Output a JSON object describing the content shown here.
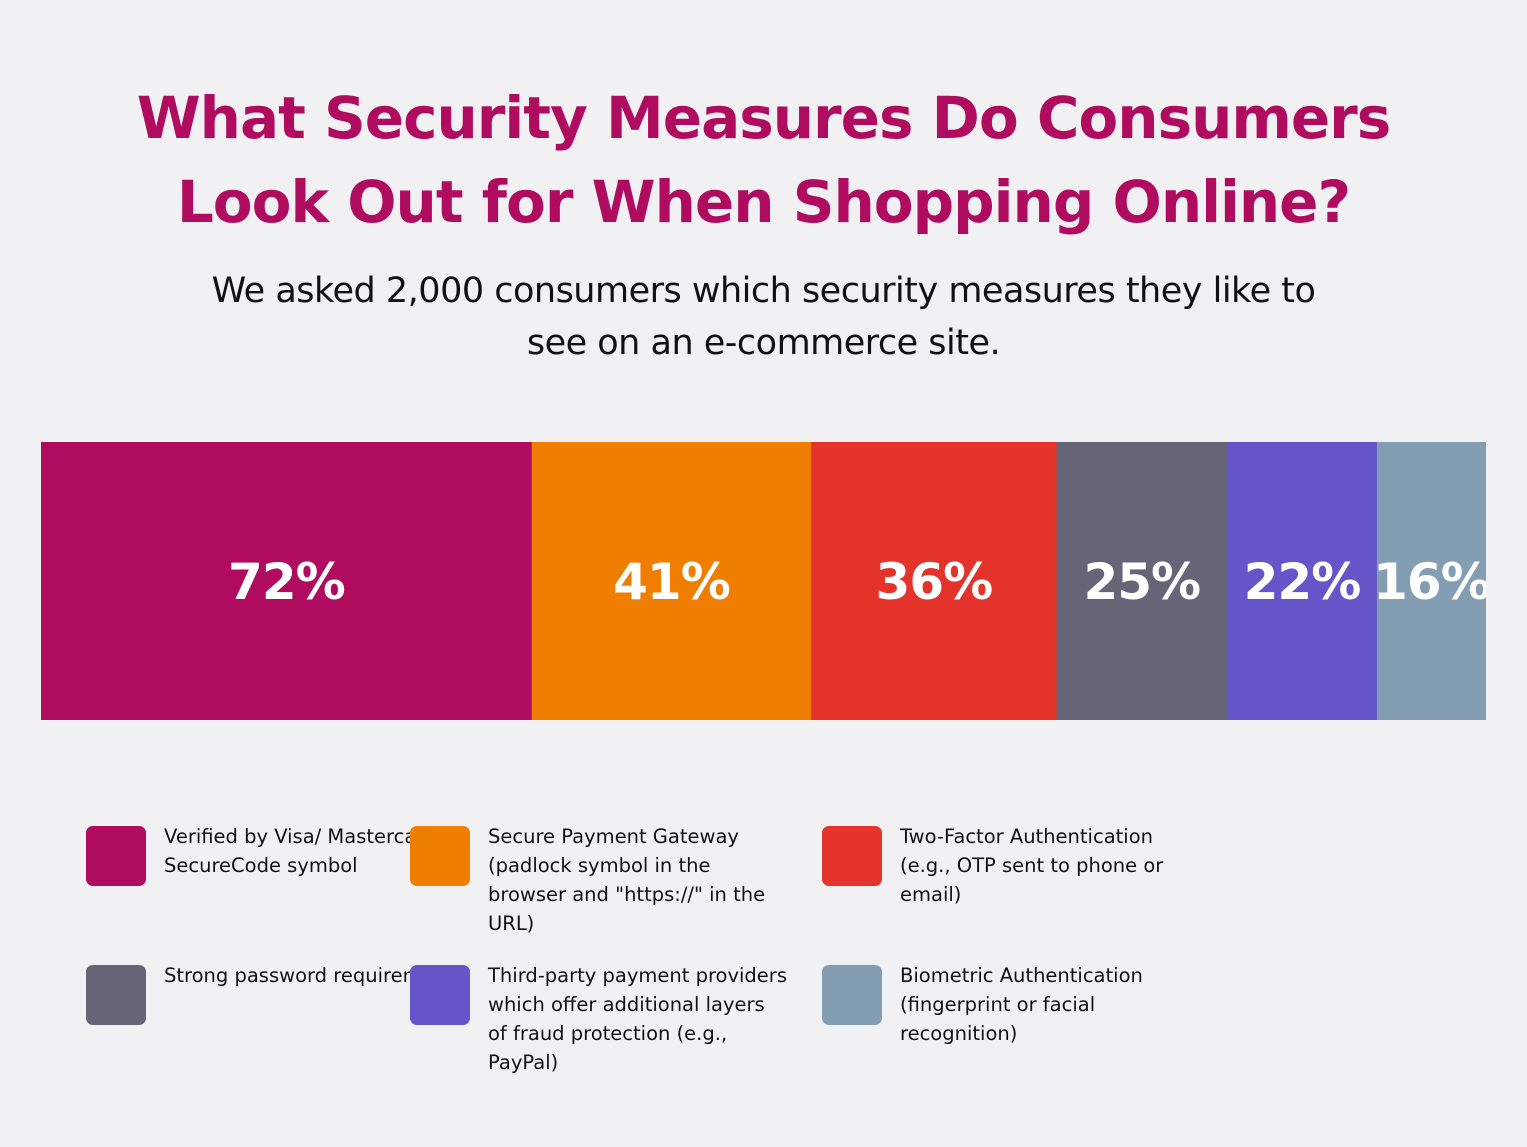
{
  "title": "What Security Measures Do Consumers Look Out for When Shopping Online?",
  "subtitle": "We asked 2,000 consumers which security measures they like to see on an e-commerce site.",
  "chart_data": {
    "type": "bar",
    "orientation": "horizontal-stacked",
    "categories": [
      "Verified by Visa/ Mastercard SecureCode symbol",
      "Secure Payment Gateway (padlock symbol in the browser and \"https://\" in the URL)",
      "Two-Factor Authentication (e.g., OTP sent to phone or email)",
      "Strong password requirements",
      "Third-party payment providers which offer additional layers of fraud protection (e.g., PayPal)",
      "Biometric Authentication (fingerprint or facial recognition)"
    ],
    "values": [
      72,
      41,
      36,
      25,
      22,
      16
    ],
    "value_labels": [
      "72%",
      "41%",
      "36%",
      "25%",
      "22%",
      "16%"
    ],
    "colors": [
      "#b00c5f",
      "#ee7d00",
      "#e3332a",
      "#676477",
      "#6555c8",
      "#839db3"
    ],
    "legend_position": "bottom",
    "grid": false
  },
  "legend": [
    {
      "label": "Verified by Visa/ Mastercard SecureCode symbol",
      "color": "#b00c5f"
    },
    {
      "label": "Secure Payment Gateway (padlock symbol in the browser and \"https://\" in the URL)",
      "color": "#ee7d00"
    },
    {
      "label": "Two-Factor Authentication (e.g., OTP sent to phone or email)",
      "color": "#e3332a"
    },
    {
      "label": "Strong password requirements",
      "color": "#676477"
    },
    {
      "label": "Third-party payment providers which offer additional layers of fraud protection (e.g., PayPal)",
      "color": "#6555c8"
    },
    {
      "label": "Biometric Authentication (fingerprint or facial recognition)",
      "color": "#839db3"
    }
  ]
}
